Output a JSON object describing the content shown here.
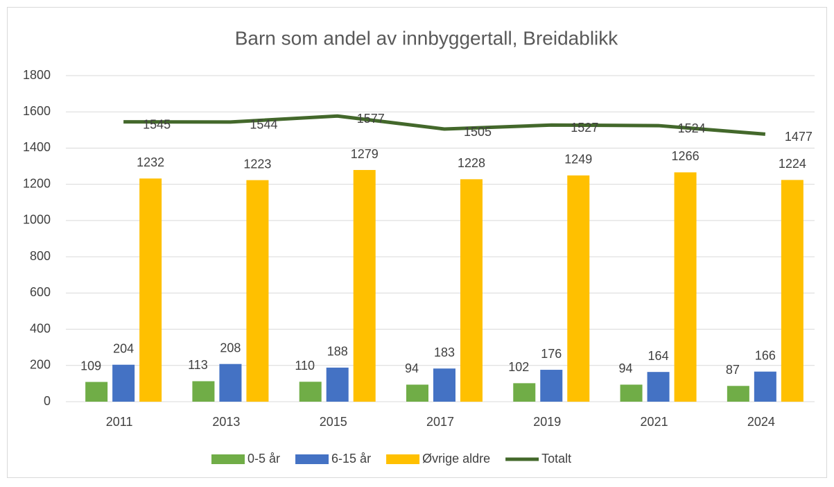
{
  "chart_data": {
    "type": "bar",
    "title": "Barn som andel av innbyggertall, Breidablikk",
    "categories": [
      "2011",
      "2013",
      "2015",
      "2017",
      "2019",
      "2021",
      "2024"
    ],
    "series": [
      {
        "name": "0-5 år",
        "color": "#70ad47",
        "values": [
          109,
          113,
          110,
          94,
          102,
          94,
          87
        ]
      },
      {
        "name": "6-15 år",
        "color": "#4472c4",
        "values": [
          204,
          208,
          188,
          183,
          176,
          164,
          166
        ]
      },
      {
        "name": "Øvrige aldre",
        "color": "#ffc000",
        "values": [
          1232,
          1223,
          1279,
          1228,
          1249,
          1266,
          1224
        ]
      },
      {
        "name": "Totalt",
        "color": "#43682b",
        "type": "line",
        "values": [
          1545,
          1544,
          1577,
          1505,
          1527,
          1524,
          1477
        ]
      }
    ],
    "ylim": [
      0,
      1800
    ],
    "yticks": [
      0,
      200,
      400,
      600,
      800,
      1000,
      1200,
      1400,
      1600,
      1800
    ],
    "grid": true,
    "legend": "bottom"
  }
}
